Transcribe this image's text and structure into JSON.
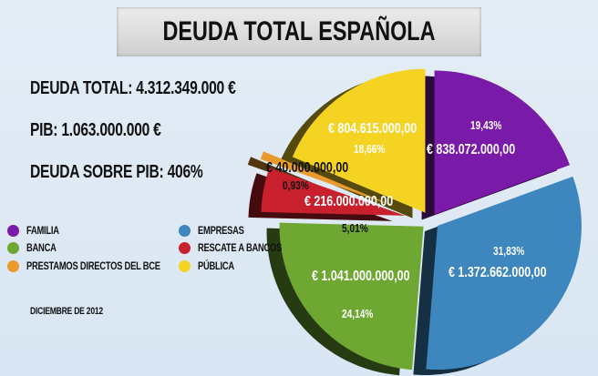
{
  "title": "DEUDA TOTAL ESPAÑOLA",
  "stats": {
    "deuda_total": "DEUDA TOTAL: 4.312.349.000 €",
    "pib": "PIB: 1.063.000.000 €",
    "deuda_pib": "DEUDA SOBRE PIB: 406%"
  },
  "date": "DICIEMBRE DE 2012",
  "chart_data": {
    "type": "pie",
    "title": "DEUDA TOTAL ESPAÑOLA",
    "categories": [
      "FAMILIA",
      "EMPRESAS",
      "BANCA",
      "RESCATE A BANCOS",
      "PRESTAMOS DIRECTOS DEL BCE",
      "PÚBLICA"
    ],
    "values": [
      838072000,
      1372662000,
      1041000000,
      216000000,
      40000000,
      804615000
    ],
    "value_labels": [
      "€ 838.072.000,00",
      "€ 1.372.662.000,00",
      "€ 1.041.000.000,00",
      "€ 216.000.000,00",
      "€ 40.000.000,00",
      "€ 804.615.000,00"
    ],
    "percent_labels": [
      "19,43%",
      "31,83%",
      "24,14%",
      "5,01%",
      "0,93%",
      "18,66%"
    ],
    "percents": [
      19.43,
      31.83,
      24.14,
      5.01,
      0.93,
      18.66
    ],
    "colors": [
      "#7a1aa8",
      "#3d86be",
      "#6ea832",
      "#c8202c",
      "#e89a2a",
      "#f4d322"
    ],
    "legend_placement": "left",
    "style": "3d-exploded"
  }
}
